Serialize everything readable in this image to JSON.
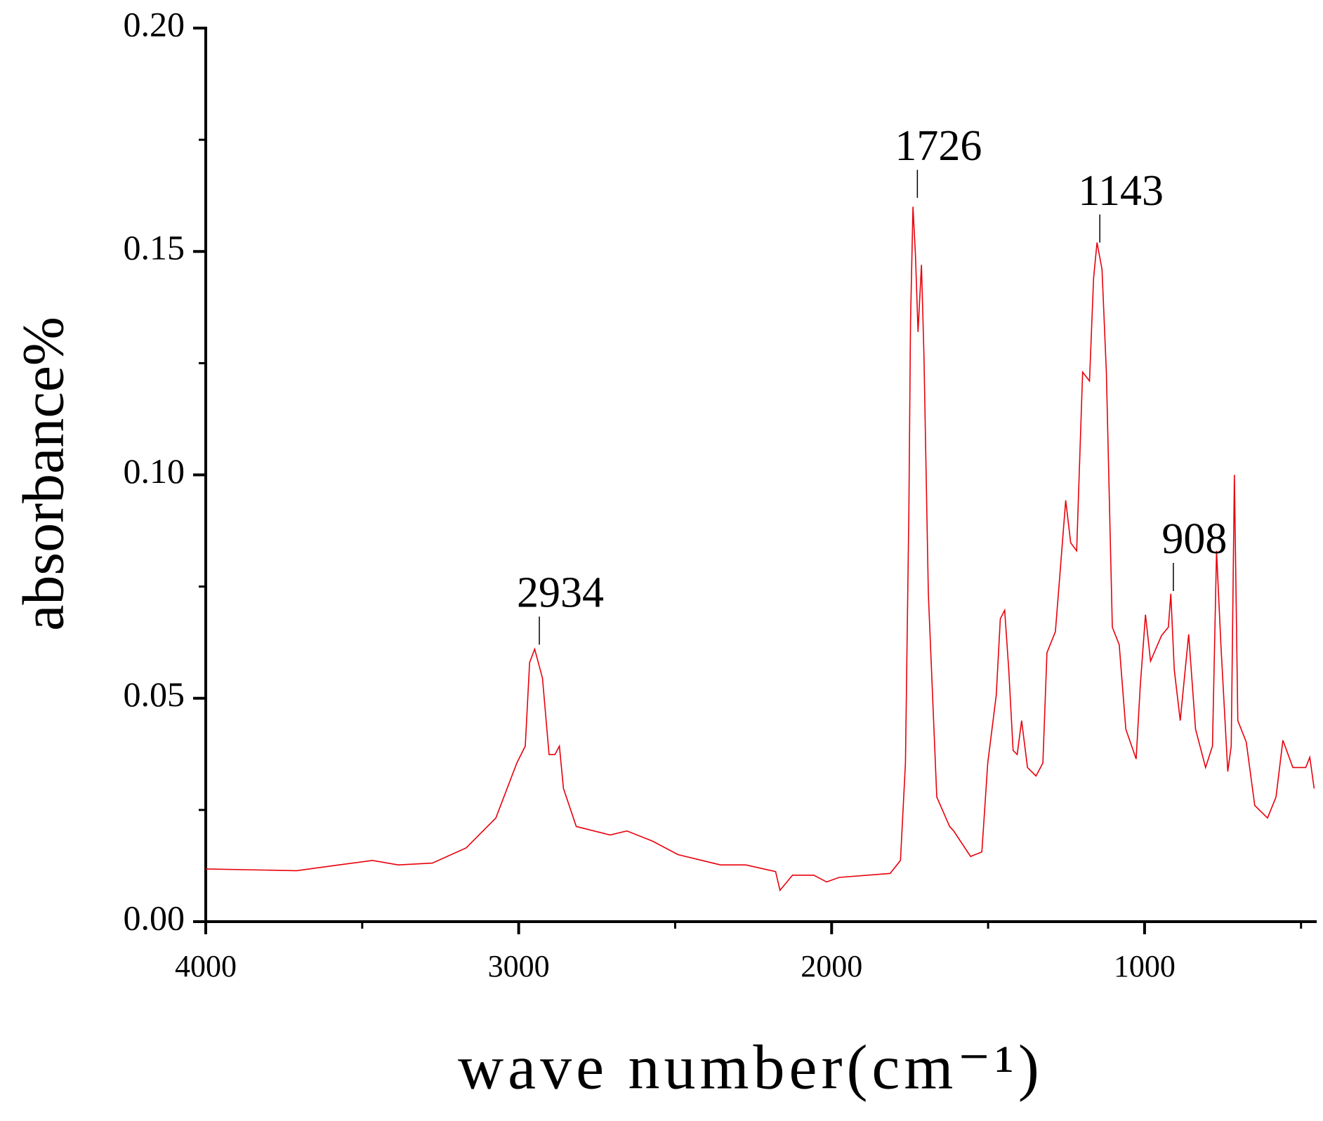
{
  "chart_data": {
    "type": "line",
    "x_label": "wave number(cm⁻¹)",
    "y_label": "absorbance%",
    "x": [
      4000,
      3710,
      3575,
      3467,
      3385,
      3276,
      3168,
      3073,
      3006,
      2979,
      2965,
      2949,
      2924,
      2903,
      2884,
      2870,
      2857,
      2816,
      2708,
      2654,
      2572,
      2491,
      2355,
      2274,
      2179,
      2165,
      2125,
      2057,
      2016,
      1976,
      1813,
      1780,
      1764,
      1753,
      1748,
      1740,
      1732,
      1724,
      1713,
      1705,
      1691,
      1664,
      1623,
      1610,
      1556,
      1520,
      1501,
      1474,
      1461,
      1447,
      1434,
      1420,
      1407,
      1393,
      1374,
      1347,
      1325,
      1312,
      1285,
      1271,
      1252,
      1236,
      1217,
      1198,
      1176,
      1163,
      1152,
      1136,
      1122,
      1103,
      1081,
      1060,
      1027,
      1014,
      997,
      981,
      946,
      924,
      916,
      905,
      886,
      859,
      837,
      805,
      783,
      770,
      756,
      734,
      723,
      713,
      702,
      675,
      648,
      607,
      580,
      558,
      526,
      485,
      472,
      458
    ],
    "series": [
      {
        "name": "spectrum",
        "color": "#e8000b",
        "values": [
          0.0118,
          0.0114,
          0.0127,
          0.0137,
          0.0127,
          0.0131,
          0.0165,
          0.0232,
          0.0355,
          0.0393,
          0.058,
          0.061,
          0.0545,
          0.0374,
          0.0374,
          0.0393,
          0.0298,
          0.0213,
          0.0194,
          0.0203,
          0.018,
          0.015,
          0.0127,
          0.0127,
          0.0112,
          0.007,
          0.0104,
          0.0104,
          0.0089,
          0.0099,
          0.0108,
          0.0137,
          0.0355,
          0.0924,
          0.134,
          0.16,
          0.149,
          0.132,
          0.147,
          0.127,
          0.0734,
          0.0279,
          0.0213,
          0.0203,
          0.0146,
          0.0156,
          0.0355,
          0.0507,
          0.0678,
          0.0697,
          0.0564,
          0.0383,
          0.0374,
          0.045,
          0.0345,
          0.0326,
          0.0355,
          0.0602,
          0.0649,
          0.0772,
          0.0943,
          0.0848,
          0.083,
          0.123,
          0.121,
          0.144,
          0.152,
          0.146,
          0.123,
          0.0659,
          0.062,
          0.0431,
          0.0364,
          0.0526,
          0.0687,
          0.0583,
          0.064,
          0.0659,
          0.0734,
          0.0564,
          0.045,
          0.0643,
          0.0431,
          0.0345,
          0.0393,
          0.083,
          0.062,
          0.0336,
          0.0393,
          0.1,
          0.045,
          0.0402,
          0.026,
          0.0232,
          0.0279,
          0.0406,
          0.0345,
          0.0345,
          0.0368,
          0.0298
        ]
      }
    ],
    "xlim": [
      4000,
      450
    ],
    "xticks": [
      4000,
      3000,
      2000,
      1000
    ],
    "xminor": [
      3500,
      2500,
      1500,
      500
    ],
    "ylim": [
      0,
      0.2
    ],
    "yticks": [
      {
        "value": 0,
        "label": "0.00"
      },
      {
        "value": 0.05,
        "label": "0.05"
      },
      {
        "value": 0.1,
        "label": "0.10"
      },
      {
        "value": 0.15,
        "label": "0.15"
      },
      {
        "value": 0.2,
        "label": "0.20"
      }
    ],
    "yminor": [
      0.025,
      0.075,
      0.125,
      0.175
    ],
    "annotations": [
      {
        "text": "2934",
        "x": 2934,
        "y": 0.062
      },
      {
        "text": "1726",
        "x": 1726,
        "y": 0.162
      },
      {
        "text": "1143",
        "x": 1143,
        "y": 0.152
      },
      {
        "text": "908",
        "x": 908,
        "y": 0.074
      }
    ]
  }
}
